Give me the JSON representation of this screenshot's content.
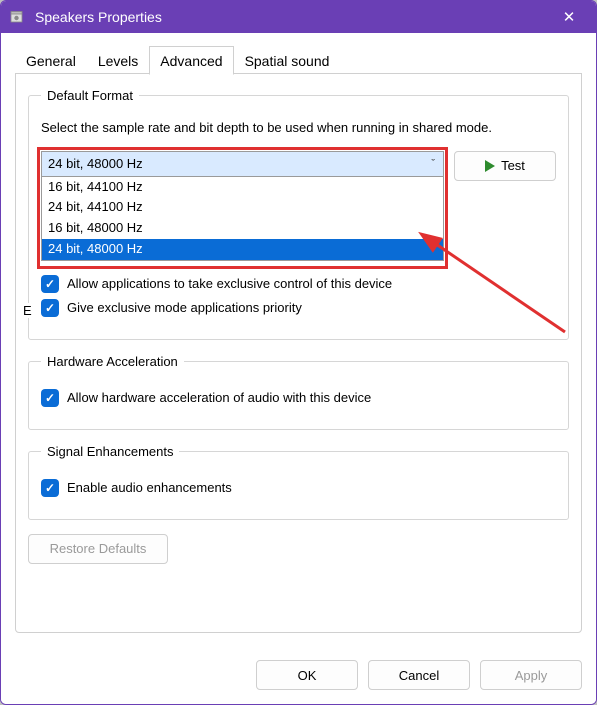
{
  "colors": {
    "titlebar_bg": "#6a3fb5",
    "titlebar_fg": "#ffffff",
    "window_bg": "#ffffff",
    "border": "#d0d0d0",
    "combo_bg": "#d9eaff",
    "annotation_red": "#e03030",
    "selection_blue": "#0a6cd6",
    "checkbox_blue": "#0a6cd6",
    "play_green": "#2e8b2e",
    "disabled_text": "#9a9a9a"
  },
  "window": {
    "title": "Speakers Properties",
    "close_icon": "✕"
  },
  "tabs": {
    "items": [
      "General",
      "Levels",
      "Advanced",
      "Spatial sound"
    ],
    "active_index": 2
  },
  "default_format": {
    "legend": "Default Format",
    "description": "Select the sample rate and bit depth to be used when running in shared mode.",
    "selected": "24 bit, 48000 Hz",
    "options": [
      "16 bit, 44100 Hz",
      "24 bit, 44100 Hz",
      "16 bit, 48000 Hz",
      "24 bit, 48000 Hz"
    ],
    "highlighted_index": 3,
    "test_button": "Test"
  },
  "exclusive_mode": {
    "legend_cut_letter": "E",
    "allow_exclusive_control_label": "Allow applications to take exclusive control of this device",
    "allow_exclusive_control_checked": true,
    "give_priority_label": "Give exclusive mode applications priority",
    "give_priority_checked": true
  },
  "hardware_accel": {
    "legend": "Hardware Acceleration",
    "allow_hw_label": "Allow hardware acceleration of audio with this device",
    "allow_hw_checked": true
  },
  "signal_enhancements": {
    "legend": "Signal Enhancements",
    "enable_label": "Enable audio enhancements",
    "enable_checked": true
  },
  "restore_defaults": "Restore Defaults",
  "footer": {
    "ok": "OK",
    "cancel": "Cancel",
    "apply": "Apply",
    "apply_enabled": false
  },
  "annotation": {
    "has_red_box": true,
    "has_arrow": true,
    "arrow_color": "#e03030"
  }
}
